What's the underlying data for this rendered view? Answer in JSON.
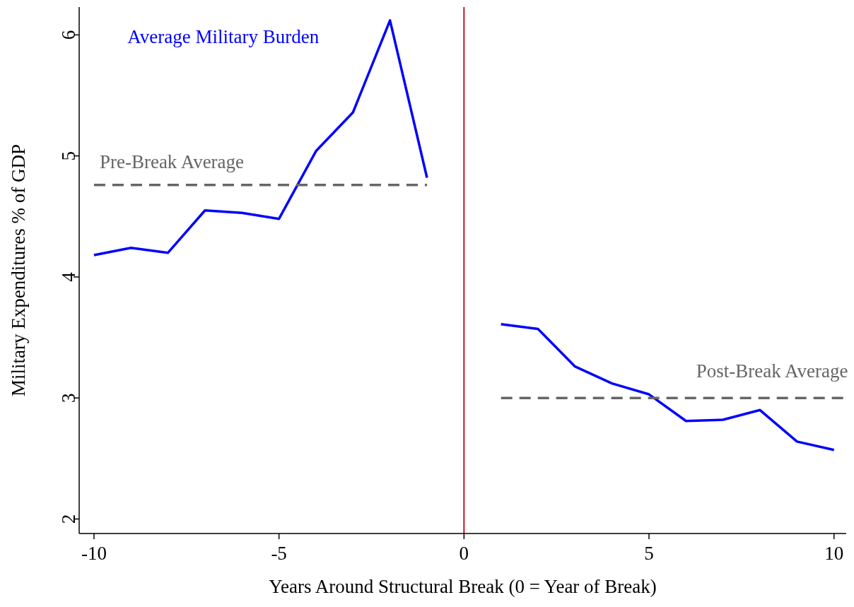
{
  "chart_data": {
    "type": "line",
    "xlabel": "Years Around Structural Break (0 = Year of Break)",
    "ylabel": "Military Expenditures % of GDP",
    "xlim": [
      -10.4,
      10.33
    ],
    "ylim": [
      1.88,
      6.23
    ],
    "xticks": [
      -10,
      -5,
      0,
      5,
      10
    ],
    "yticks": [
      2,
      3,
      4,
      5,
      6
    ],
    "grid": false,
    "marker": "none",
    "series": [
      {
        "name": "Average Military Burden",
        "color": "#0000ff",
        "line_style": "solid",
        "x": [
          -10,
          -9,
          -8,
          -7,
          -6,
          -5,
          -4,
          -3,
          -2,
          -1,
          1,
          2,
          3,
          4,
          5,
          6,
          7,
          8,
          9,
          10
        ],
        "values": [
          4.18,
          4.24,
          4.2,
          4.55,
          4.53,
          4.48,
          5.04,
          5.36,
          6.12,
          4.82,
          3.61,
          3.57,
          3.26,
          3.12,
          3.03,
          2.81,
          2.82,
          2.9,
          2.64,
          2.57
        ]
      },
      {
        "name": "Pre-Break Average",
        "color": "#666666",
        "line_style": "dashed",
        "x": [
          -10,
          -1
        ],
        "values": [
          4.76,
          4.76
        ]
      },
      {
        "name": "Post-Break Average",
        "color": "#666666",
        "line_style": "dashed",
        "x": [
          1,
          10.3
        ],
        "values": [
          3.0,
          3.0
        ]
      }
    ],
    "ref_lines": [
      {
        "axis": "x",
        "value": 0,
        "color": "#c8102e",
        "line_style": "solid"
      }
    ]
  }
}
